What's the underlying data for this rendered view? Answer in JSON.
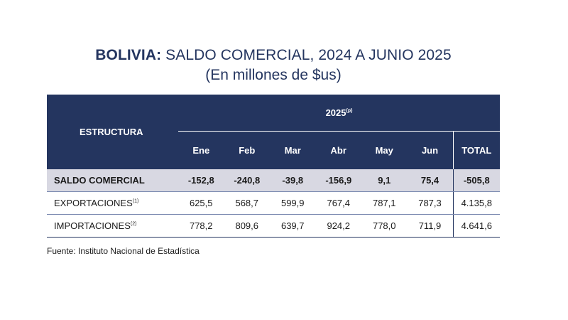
{
  "title": {
    "country": "BOLIVIA:",
    "rest": "SALDO COMERCIAL, 2024 A JUNIO 2025",
    "subtitle": "(En millones de $us)"
  },
  "table": {
    "structure_header": "ESTRUCTURA",
    "year_header": "2025",
    "year_note": "(p)",
    "months": [
      "Ene",
      "Feb",
      "Mar",
      "Abr",
      "May",
      "Jun"
    ],
    "total_header": "TOTAL",
    "rows": [
      {
        "label": "SALDO COMERCIAL",
        "note": "",
        "values": [
          "-152,8",
          "-240,8",
          "-39,8",
          "-156,9",
          "9,1",
          "75,4"
        ],
        "total": "-505,8"
      },
      {
        "label": "EXPORTACIONES",
        "note": "(1)",
        "values": [
          "625,5",
          "568,7",
          "599,9",
          "767,4",
          "787,1",
          "787,3"
        ],
        "total": "4.135,8"
      },
      {
        "label": "IMPORTACIONES",
        "note": "(2)",
        "values": [
          "778,2",
          "809,6",
          "639,7",
          "924,2",
          "778,0",
          "711,9"
        ],
        "total": "4.641,6"
      }
    ]
  },
  "source": "Fuente: Instituto Nacional de Estadística"
}
